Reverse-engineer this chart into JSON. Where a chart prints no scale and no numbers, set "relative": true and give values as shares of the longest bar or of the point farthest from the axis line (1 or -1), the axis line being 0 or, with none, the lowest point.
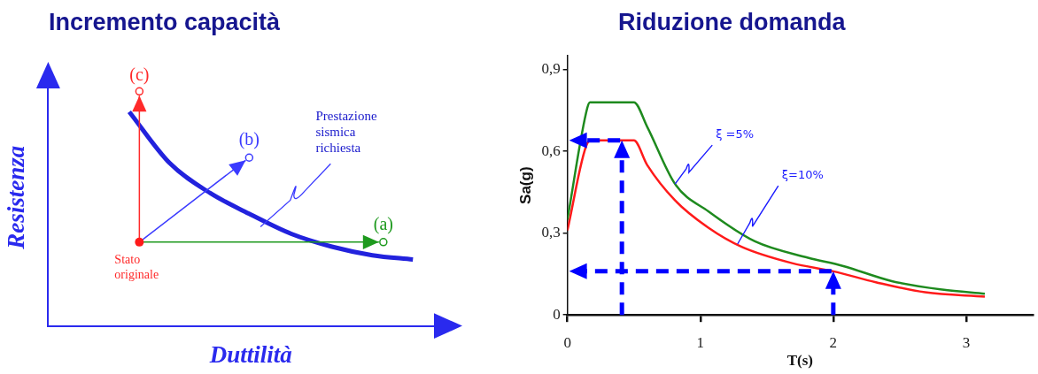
{
  "chart_data": [
    {
      "type": "line",
      "title": "Incremento capacità",
      "xlabel": "Duttilità",
      "ylabel": "Resistenza",
      "relative": true,
      "tick_labels": false,
      "grid": false,
      "legend": false,
      "marker": "none",
      "categories": [
        null,
        null,
        null,
        null,
        null,
        null,
        null,
        null,
        null,
        null,
        null
      ],
      "series": [
        {
          "color": "#2222dd",
          "values": [
            null,
            null,
            1,
            0.76,
            0.62,
            0.52,
            0.43,
            0.37,
            0.33,
            0.31,
            null
          ]
        }
      ],
      "annotations": [
        "(c)",
        "(b)",
        "(a)",
        "Stato originale",
        "Prestazione sismica richiesta"
      ]
    },
    {
      "type": "line",
      "title": "Riduzione domanda",
      "xlabel": "T(s)",
      "ylabel": "Sa(g)",
      "xlim": [
        0,
        3.5
      ],
      "xticks": [
        0,
        1,
        2,
        3
      ],
      "ylim": [
        0,
        0.95
      ],
      "yticks": [
        0,
        {
          "value": 0.3,
          "label": "0,3"
        },
        {
          "value": 0.6,
          "label": "0,6"
        },
        {
          "value": 0.9,
          "label": "0,9"
        }
      ],
      "grid": false,
      "legend": false,
      "marker": "none",
      "series": [
        {
          "color": "#1e8a1e",
          "x": [
            0,
            0.15,
            0.17,
            0.5,
            0.6,
            0.81,
            1.06,
            1.41,
            1.81,
            2.07,
            2.44,
            2.82,
            3.14
          ],
          "values": [
            0.35,
            0.76,
            0.78,
            0.78,
            0.69,
            0.48,
            0.38,
            0.27,
            0.21,
            0.18,
            0.124,
            0.093,
            0.078
          ]
        },
        {
          "color": "#ff1a1a",
          "x": [
            0,
            0.15,
            0.18,
            0.41,
            0.5,
            0.6,
            0.81,
            1.06,
            1.31,
            1.69,
            2,
            2.32,
            2.69,
            3.14
          ],
          "values": [
            0.31,
            0.63,
            0.64,
            0.64,
            0.64,
            0.55,
            0.42,
            0.32,
            0.25,
            0.19,
            0.16,
            0.12,
            0.083,
            0.067
          ]
        }
      ],
      "annotations": [
        {
          "text": "ξ =5%",
          "x": 0.81,
          "y": 0.48
        },
        {
          "text": "ξ=10%",
          "x": 1.28,
          "y": 0.26
        }
      ]
    }
  ]
}
